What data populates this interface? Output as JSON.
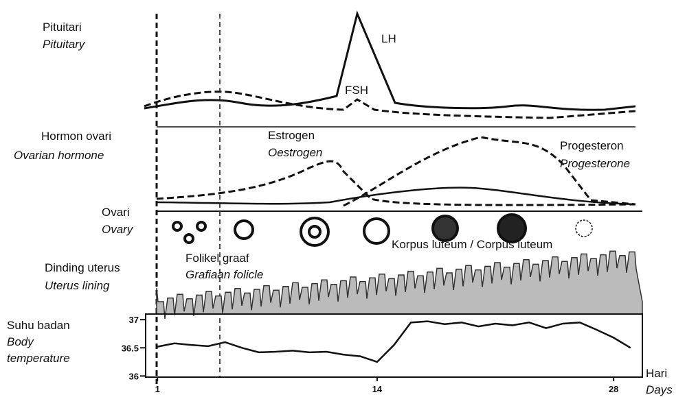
{
  "pituitary": {
    "label": "Pituitari",
    "label_en": "Pituitary",
    "lh": "LH",
    "fsh": "FSH"
  },
  "ovarian_hormone": {
    "label": "Hormon ovari",
    "label_en": "Ovarian  hormone",
    "estrogen": "Estrogen",
    "estrogen_en": "Oestrogen",
    "progesterone": "Progesteron",
    "progesterone_en": "Progesterone"
  },
  "ovary": {
    "label": "Ovari",
    "label_en": "Ovary",
    "corpus": "Korpus luteum / Corpus luteum"
  },
  "uterus": {
    "label": "Dinding uterus",
    "label_en": "Uterus lining",
    "follicle": "Folikel graaf",
    "follicle_en": "Grafiaan folicle"
  },
  "temperature": {
    "label": "Suhu badan",
    "label_en": "Body",
    "label_en2": "temperature",
    "x_label": "Hari",
    "x_label_en": "Days",
    "x": [
      1,
      2,
      3,
      4,
      5,
      6,
      7,
      8,
      9,
      10,
      11,
      12,
      13,
      14,
      15,
      16,
      17,
      18,
      19,
      20,
      21,
      22,
      23,
      24,
      25,
      26,
      27,
      28,
      29
    ],
    "values": [
      36.52,
      36.58,
      36.55,
      36.53,
      36.6,
      36.5,
      36.42,
      36.43,
      36.45,
      36.42,
      36.43,
      36.38,
      36.35,
      36.25,
      36.55,
      36.95,
      36.97,
      36.92,
      36.95,
      36.88,
      36.93,
      36.9,
      36.95,
      36.85,
      36.93,
      36.95,
      36.82,
      36.68,
      36.5
    ],
    "xlim": [
      0.3,
      29.7
    ],
    "ylim": [
      35.98,
      37.1
    ],
    "xticks": [
      1,
      14,
      28
    ],
    "yticks": [
      36,
      36.5,
      37
    ]
  }
}
